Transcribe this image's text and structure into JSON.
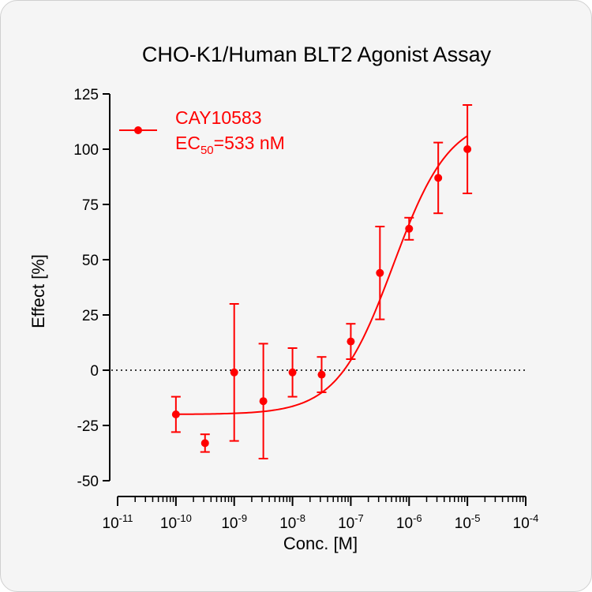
{
  "colors": {
    "series": "#ff0000",
    "axis": "#000000",
    "background": "#f5f5f5"
  },
  "chart_data": {
    "type": "scatter",
    "title": "CHO-K1/Human BLT2 Agonist Assay",
    "xlabel": "Conc. [M]",
    "ylabel": "Effect  [%]",
    "x_scale": "log",
    "xlim": [
      1e-11,
      0.0001
    ],
    "ylim": [
      -50,
      125
    ],
    "x_ticks": [
      {
        "base": "10",
        "exp": "-11"
      },
      {
        "base": "10",
        "exp": "-10"
      },
      {
        "base": "10",
        "exp": "-9"
      },
      {
        "base": "10",
        "exp": "-8"
      },
      {
        "base": "10",
        "exp": "-7"
      },
      {
        "base": "10",
        "exp": "-6"
      },
      {
        "base": "10",
        "exp": "-5"
      },
      {
        "base": "10",
        "exp": "-4"
      }
    ],
    "y_ticks": [
      "-50",
      "-25",
      "0",
      "25",
      "50",
      "75",
      "100",
      "125"
    ],
    "reference_line": {
      "y": 0,
      "style": "dotted"
    },
    "legend": {
      "placement": "top-left",
      "series_name": "CAY10583",
      "ec_prefix": "EC",
      "ec_subscript": "50",
      "ec_value": "=533 nM"
    },
    "series": [
      {
        "name": "CAY10583",
        "points": [
          {
            "x": 1e-10,
            "y": -20,
            "err": 8
          },
          {
            "x": 3.16e-10,
            "y": -33,
            "err": 4
          },
          {
            "x": 1e-09,
            "y": -1,
            "err": 31
          },
          {
            "x": 3.16e-09,
            "y": -14,
            "err": 26
          },
          {
            "x": 1e-08,
            "y": -1,
            "err": 11
          },
          {
            "x": 3.16e-08,
            "y": -2,
            "err": 8
          },
          {
            "x": 1e-07,
            "y": 13,
            "err": 8
          },
          {
            "x": 3.16e-07,
            "y": 44,
            "err": 21
          },
          {
            "x": 1e-06,
            "y": 64,
            "err": 5
          },
          {
            "x": 3.16e-06,
            "y": 87,
            "err": 16
          },
          {
            "x": 1e-05,
            "y": 100,
            "err": 20
          }
        ],
        "fit": {
          "model": "four-parameter logistic",
          "bottom": -20,
          "top": 115,
          "ec50": 5.33e-07,
          "hill": 0.9
        }
      }
    ]
  }
}
